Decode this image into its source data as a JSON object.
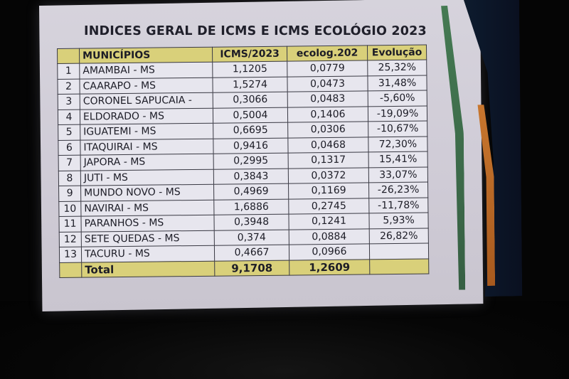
{
  "slide": {
    "title": "INDICES GERAL DE ICMS E ICMS ECOLÓGIO 2023"
  },
  "table": {
    "headers": {
      "municipio": "MUNICÍPIOS",
      "icms": "ICMS/2023",
      "ecolog": "ecolog.202",
      "evolucao": "Evolução"
    },
    "rows": [
      {
        "n": "1",
        "municipio": "AMAMBAI - MS",
        "icms": "1,1205",
        "ecolog": "0,0779",
        "evolucao": "25,32%"
      },
      {
        "n": "2",
        "municipio": "CAARAPO - MS",
        "icms": "1,5274",
        "ecolog": "0,0473",
        "evolucao": "31,48%"
      },
      {
        "n": "3",
        "municipio": "CORONEL SAPUCAIA -",
        "icms": "0,3066",
        "ecolog": "0,0483",
        "evolucao": "-5,60%"
      },
      {
        "n": "4",
        "municipio": "ELDORADO - MS",
        "icms": "0,5004",
        "ecolog": "0,1406",
        "evolucao": "-19,09%"
      },
      {
        "n": "5",
        "municipio": "IGUATEMI - MS",
        "icms": "0,6695",
        "ecolog": "0,0306",
        "evolucao": "-10,67%"
      },
      {
        "n": "6",
        "municipio": "ITAQUIRAI - MS",
        "icms": "0,9416",
        "ecolog": "0,0468",
        "evolucao": "72,30%"
      },
      {
        "n": "7",
        "municipio": "JAPORA - MS",
        "icms": "0,2995",
        "ecolog": "0,1317",
        "evolucao": "15,41%"
      },
      {
        "n": "8",
        "municipio": "JUTI - MS",
        "icms": "0,3843",
        "ecolog": "0,0372",
        "evolucao": "33,07%"
      },
      {
        "n": "9",
        "municipio": "MUNDO NOVO - MS",
        "icms": "0,4969",
        "ecolog": "0,1169",
        "evolucao": "-26,23%"
      },
      {
        "n": "10",
        "municipio": "NAVIRAI - MS",
        "icms": "1,6886",
        "ecolog": "0,2745",
        "evolucao": "-11,78%"
      },
      {
        "n": "11",
        "municipio": "PARANHOS - MS",
        "icms": "0,3948",
        "ecolog": "0,1241",
        "evolucao": "5,93%"
      },
      {
        "n": "12",
        "municipio": "SETE QUEDAS - MS",
        "icms": "0,374",
        "ecolog": "0,0884",
        "evolucao": "26,82%"
      },
      {
        "n": "13",
        "municipio": "TACURU - MS",
        "icms": "0,4667",
        "ecolog": "0,0966",
        "evolucao": ""
      }
    ],
    "total": {
      "label": "Total",
      "icms": "9,1708",
      "ecolog": "1,2609"
    }
  },
  "colors": {
    "header_fill": "#d9d07a",
    "cell_fill": "#e7e6ee",
    "screen": "#d6d3dc",
    "deco_green": "#2b6a3a",
    "deco_orange": "#c8762e"
  }
}
